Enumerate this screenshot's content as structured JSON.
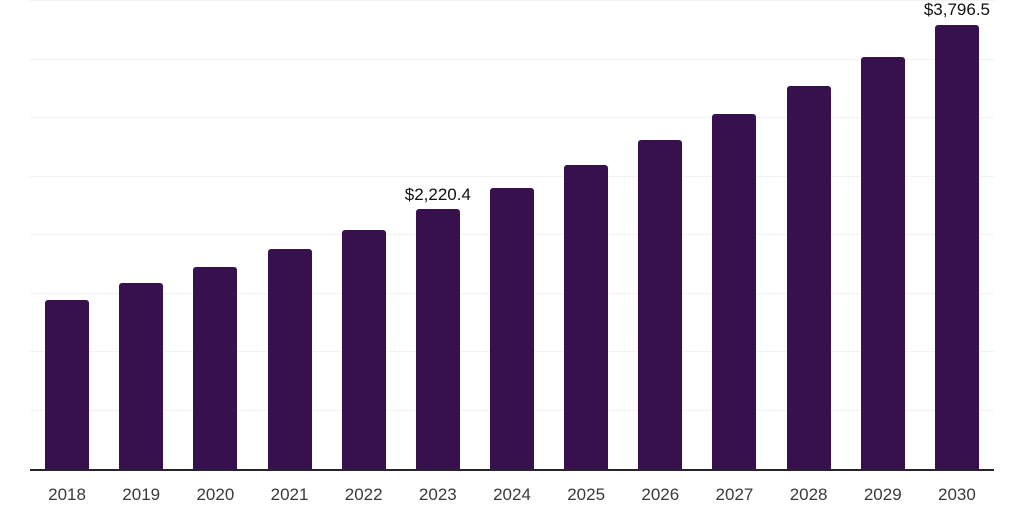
{
  "chart_data": {
    "type": "bar",
    "title": "",
    "xlabel": "",
    "ylabel": "",
    "categories": [
      "2018",
      "2019",
      "2020",
      "2021",
      "2022",
      "2023",
      "2024",
      "2025",
      "2026",
      "2027",
      "2028",
      "2029",
      "2030"
    ],
    "values": [
      1445,
      1590,
      1725,
      1880,
      2045,
      2220.4,
      2400,
      2600,
      2810,
      3035,
      3275,
      3525,
      3796.5
    ],
    "bar_labels": {
      "2023": "$2,220.4",
      "2030": "$3,796.5"
    },
    "ylim": [
      0,
      4000
    ],
    "gridline_step": 500,
    "grid": "horizontal",
    "y_axis_labels_visible": false,
    "legend": "none",
    "colors": {
      "bar": "#36114e",
      "axis_line": "#26232e",
      "gridline": "#f2f2f5",
      "tick_label": "#3a3a3a",
      "data_label": "#111111",
      "background": "#ffffff"
    }
  }
}
